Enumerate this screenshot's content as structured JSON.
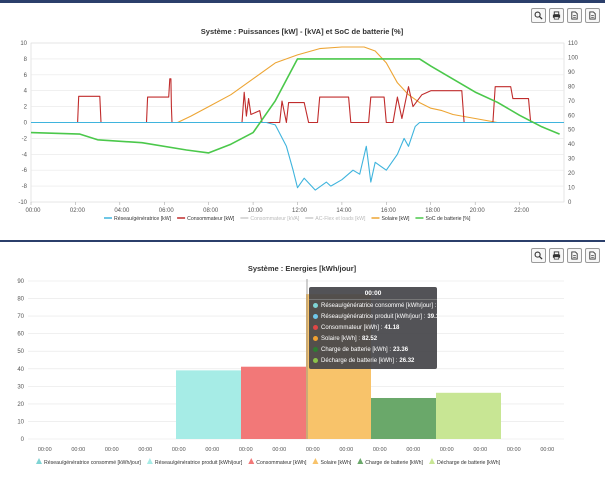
{
  "charts": [
    {
      "type": "line",
      "title": "Système : Puissances [kW] - [kVA] et SoC de batterie [%]",
      "x_ticks": [
        "00:00",
        "02:00",
        "04:00",
        "06:00",
        "08:00",
        "10:00",
        "12:00",
        "14:00",
        "16:00",
        "18:00",
        "20:00",
        "22:00"
      ],
      "y_left": {
        "min": -10,
        "max": 10,
        "step": 2
      },
      "y_right": {
        "min": 0,
        "max": 110,
        "step": 10
      },
      "series": [
        {
          "name": "Réseau/génératrice [kW]",
          "color": "#3fb4dd",
          "axis": "left",
          "x": [
            0,
            10.6,
            11.0,
            11.5,
            11.8,
            12.0,
            12.3,
            12.8,
            13.3,
            13.5,
            14.0,
            14.5,
            14.8,
            15.1,
            15.3,
            15.5,
            16.0,
            16.5,
            16.8,
            17.0,
            17.3,
            17.5,
            24
          ],
          "y": [
            0,
            0,
            -0.3,
            -3.0,
            -6.0,
            -8.2,
            -7.0,
            -8.5,
            -7.5,
            -8.0,
            -7.2,
            -6.0,
            -6.5,
            -3.0,
            -7.5,
            -5.0,
            -6.0,
            -4.0,
            -2.0,
            -3.0,
            -0.5,
            0,
            0
          ]
        },
        {
          "name": "Consommateur [kW]",
          "color": "#c02c2c",
          "axis": "left",
          "x": [
            0,
            2.1,
            2.15,
            3.1,
            3.15,
            5.2,
            5.25,
            6.2,
            6.25,
            6.3,
            6.32,
            6.35,
            9.5,
            9.6,
            9.7,
            9.8,
            9.9,
            10.3,
            10.4,
            11.2,
            11.3,
            11.5,
            11.6,
            12.3,
            12.5,
            12.9,
            13.0,
            14.3,
            14.4,
            15.2,
            15.3,
            15.9,
            16.0,
            16.3,
            16.5,
            16.7,
            17.0,
            17.2,
            17.6,
            18.0,
            19.4,
            19.5,
            20.8,
            20.9,
            21.6,
            21.7,
            22.4,
            22.5,
            23.5,
            24
          ],
          "y": [
            0,
            0,
            3.3,
            3.3,
            0,
            0,
            3.2,
            3.2,
            5.5,
            5.5,
            2.0,
            0,
            0,
            3.8,
            0.8,
            3.0,
            1.0,
            1.5,
            0,
            0,
            2.7,
            0,
            2.5,
            2.5,
            0,
            0,
            3.2,
            3.2,
            0,
            0,
            3.2,
            3.2,
            0,
            0,
            3.2,
            0.5,
            4.5,
            2.0,
            3.5,
            4.0,
            4.0,
            0,
            0,
            4.5,
            4.5,
            3.0,
            3.0,
            0,
            0,
            0
          ]
        },
        {
          "name": "Consommateur [kVA]",
          "color": "#dddddd",
          "axis": "left",
          "hidden": true,
          "x": [],
          "y": []
        },
        {
          "name": "AC-Flex et loads [kW]",
          "color": "#dddddd",
          "axis": "left",
          "hidden": true,
          "x": [],
          "y": []
        },
        {
          "name": "Solaire [kW]",
          "color": "#eda534",
          "axis": "left",
          "x": [
            0,
            6.6,
            7.2,
            8.0,
            9.0,
            10.0,
            11.0,
            12.0,
            13.0,
            14.0,
            15.0,
            15.5,
            16.0,
            16.5,
            17.0,
            17.5,
            18.0,
            18.5,
            19.0,
            20.0,
            21.0,
            24
          ],
          "y": [
            0,
            0,
            0.8,
            2.0,
            3.5,
            5.5,
            7.5,
            8.5,
            9.3,
            9.5,
            9.5,
            9.0,
            7.5,
            5.0,
            3.5,
            2.5,
            1.8,
            1.5,
            1.0,
            0.5,
            0,
            0
          ]
        },
        {
          "name": "SoC de batterie [%]",
          "color": "#4bc84b",
          "axis": "right",
          "x": [
            0,
            2.2,
            3.0,
            5.0,
            7.0,
            8.0,
            9.0,
            10.0,
            11.0,
            12.0,
            17.5,
            18.0,
            19.0,
            20.0,
            21.0,
            22.0,
            23.0,
            23.8
          ],
          "y": [
            48,
            47,
            43,
            41,
            36,
            34,
            40,
            48,
            70,
            99,
            99,
            94,
            85,
            76,
            69,
            60,
            52,
            47
          ]
        }
      ]
    },
    {
      "type": "bar",
      "title": "Système : Energies [kWh/jour]",
      "x_ticks": [
        "00:00",
        "00:00",
        "00:00",
        "00:00",
        "00:00",
        "00:00",
        "00:00",
        "00:00",
        "00:00",
        "00:00",
        "00:00",
        "00:00",
        "00:00",
        "00:00",
        "00:00",
        "00:00"
      ],
      "ylim": [
        0,
        90
      ],
      "y_step": 10,
      "series": [
        {
          "name": "Réseau/génératrice consommé [kWh/jour]",
          "value": 0.09,
          "color": "#7fd4d4"
        },
        {
          "name": "Réseau/génératrice produit [kWh/jour]",
          "value": 39.1,
          "color": "#a6ece6"
        },
        {
          "name": "Consommateur [kWh]",
          "value": 41.18,
          "color": "#f27878"
        },
        {
          "name": "Solaire [kWh]",
          "value": 82.52,
          "color": "#f8c36a"
        },
        {
          "name": "Charge de batterie [kWh]",
          "value": 23.36,
          "color": "#6aa86a"
        },
        {
          "name": "Décharge de batterie [kWh]",
          "value": 26.32,
          "color": "#c8e694"
        }
      ],
      "tooltip": {
        "title": "00:00",
        "rows": [
          {
            "label": "Réseau/génératrice consommé [kWh/jour] :",
            "value": "0.09",
            "color": "#7fd4d4"
          },
          {
            "label": "Réseau/génératrice produit [kWh/jour] :",
            "value": "39.1",
            "color": "#6fc7ea"
          },
          {
            "label": "Consommateur [kWh] :",
            "value": "41.18",
            "color": "#e04646"
          },
          {
            "label": "Solaire [kWh] :",
            "value": "82.52",
            "color": "#f0a030"
          },
          {
            "label": "Charge de batterie [kWh] :",
            "value": "23.36",
            "color": "#2e7d32"
          },
          {
            "label": "Décharge de batterie [kWh] :",
            "value": "26.32",
            "color": "#8bc34a"
          }
        ]
      }
    }
  ],
  "toolbar": {
    "icons": [
      "zoom-icon",
      "print-icon",
      "export-csv-icon",
      "export-pdf-icon"
    ]
  }
}
